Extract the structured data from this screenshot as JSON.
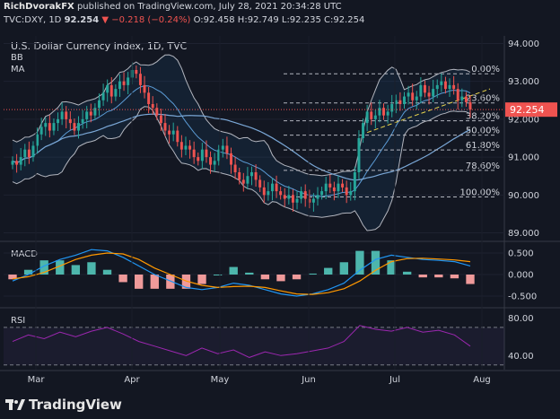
{
  "header": {
    "author": "RichDvorakFX",
    "published": "published on TradingView.com, July 28, 2021 20:34:28 UTC",
    "symbol": "TVC:DXY, 1D",
    "last": "92.254",
    "change_arrow": "▼",
    "change": "−0.218 (−0.24%)",
    "ohlc": "O:92.458 H:92.749 L:92.235 C:92.254"
  },
  "chart_title": "U.S. Dollar Currency Index, 1D, TVC",
  "indicators": {
    "bb": "BB",
    "ma": "MA"
  },
  "price_tag": "92.254",
  "brand": "TradingView",
  "colors": {
    "background": "#131722",
    "up": "#26a69a",
    "down": "#ef5350",
    "bb_band": "#b2b5be",
    "ma": "#5b9bd5",
    "macd": "#2196f3",
    "signal": "#ff9800",
    "rsi": "#9c27b0",
    "fib": "#b2b5be",
    "trend": "#e8d44d"
  },
  "chart_data": [
    {
      "type": "candlestick",
      "title": "U.S. Dollar Currency Index, 1D, TVC",
      "x_ticks": [
        "Mar",
        "Apr",
        "May",
        "Jun",
        "Jul",
        "Aug"
      ],
      "y_ticks": [
        "94.000",
        "93.000",
        "92.000",
        "91.000",
        "90.000",
        "89.000"
      ],
      "ylim": [
        88.8,
        94.2
      ],
      "last_price": 92.254,
      "close_series": [
        90.9,
        90.8,
        91.0,
        91.2,
        91.0,
        91.3,
        91.6,
        91.8,
        91.9,
        91.7,
        91.9,
        92.0,
        92.2,
        92.0,
        91.9,
        91.7,
        91.9,
        92.0,
        92.2,
        92.1,
        92.3,
        92.5,
        92.7,
        92.9,
        92.6,
        92.8,
        93.0,
        92.9,
        93.1,
        93.3,
        93.2,
        92.9,
        92.7,
        92.4,
        92.3,
        92.1,
        91.9,
        91.7,
        91.6,
        91.7,
        91.4,
        91.2,
        91.3,
        91.2,
        91.0,
        90.9,
        91.2,
        91.0,
        90.8,
        90.9,
        91.2,
        91.3,
        91.1,
        90.8,
        90.6,
        90.4,
        90.3,
        90.5,
        90.6,
        90.4,
        90.2,
        90.0,
        90.1,
        90.3,
        90.1,
        90.0,
        89.9,
        90.0,
        89.8,
        89.9,
        90.1,
        89.9,
        89.8,
        89.9,
        90.0,
        90.1,
        90.3,
        90.2,
        90.1,
        90.3,
        90.2,
        90.0,
        90.1,
        90.6,
        91.5,
        91.9,
        92.2,
        92.0,
        92.1,
        92.3,
        92.1,
        92.2,
        92.4,
        92.5,
        92.4,
        92.6,
        92.7,
        92.5,
        92.6,
        92.9,
        92.7,
        92.6,
        92.8,
        92.9,
        93.0,
        92.8,
        92.9,
        92.8,
        92.5,
        92.6,
        92.45,
        92.254
      ],
      "fibonacci": [
        {
          "label": "0.00%",
          "value": 93.2
        },
        {
          "label": "23.60%",
          "value": 92.43
        },
        {
          "label": "38.20%",
          "value": 91.96
        },
        {
          "label": "50.00%",
          "value": 91.58
        },
        {
          "label": "61.80%",
          "value": 91.19
        },
        {
          "label": "78.60%",
          "value": 90.65
        },
        {
          "label": "100.00%",
          "value": 89.95
        }
      ]
    },
    {
      "type": "line",
      "title": "MACD",
      "y_ticks": [
        "0.500",
        "0.000",
        "-0.500"
      ],
      "ylim": [
        -0.75,
        0.75
      ],
      "series": [
        {
          "name": "MACD",
          "values": [
            -0.15,
            0.0,
            0.2,
            0.35,
            0.45,
            0.58,
            0.55,
            0.4,
            0.2,
            0.0,
            -0.15,
            -0.3,
            -0.35,
            -0.3,
            -0.2,
            -0.25,
            -0.35,
            -0.45,
            -0.5,
            -0.45,
            -0.35,
            -0.2,
            0.1,
            0.35,
            0.45,
            0.4,
            0.35,
            0.33,
            0.3,
            0.2
          ]
        },
        {
          "name": "Signal",
          "values": [
            -0.1,
            -0.05,
            0.05,
            0.2,
            0.35,
            0.45,
            0.5,
            0.48,
            0.35,
            0.15,
            0.0,
            -0.15,
            -0.25,
            -0.3,
            -0.28,
            -0.27,
            -0.3,
            -0.38,
            -0.45,
            -0.46,
            -0.42,
            -0.33,
            -0.15,
            0.1,
            0.3,
            0.37,
            0.38,
            0.36,
            0.34,
            0.3
          ]
        }
      ]
    },
    {
      "type": "line",
      "title": "RSI",
      "y_ticks": [
        "80.00",
        "40.00"
      ],
      "ylim": [
        25,
        90
      ],
      "series": [
        {
          "name": "RSI",
          "values": [
            55,
            62,
            58,
            65,
            60,
            66,
            70,
            63,
            55,
            50,
            45,
            40,
            48,
            42,
            46,
            38,
            44,
            40,
            42,
            45,
            48,
            55,
            72,
            68,
            66,
            70,
            65,
            67,
            62,
            50
          ]
        }
      ]
    }
  ]
}
